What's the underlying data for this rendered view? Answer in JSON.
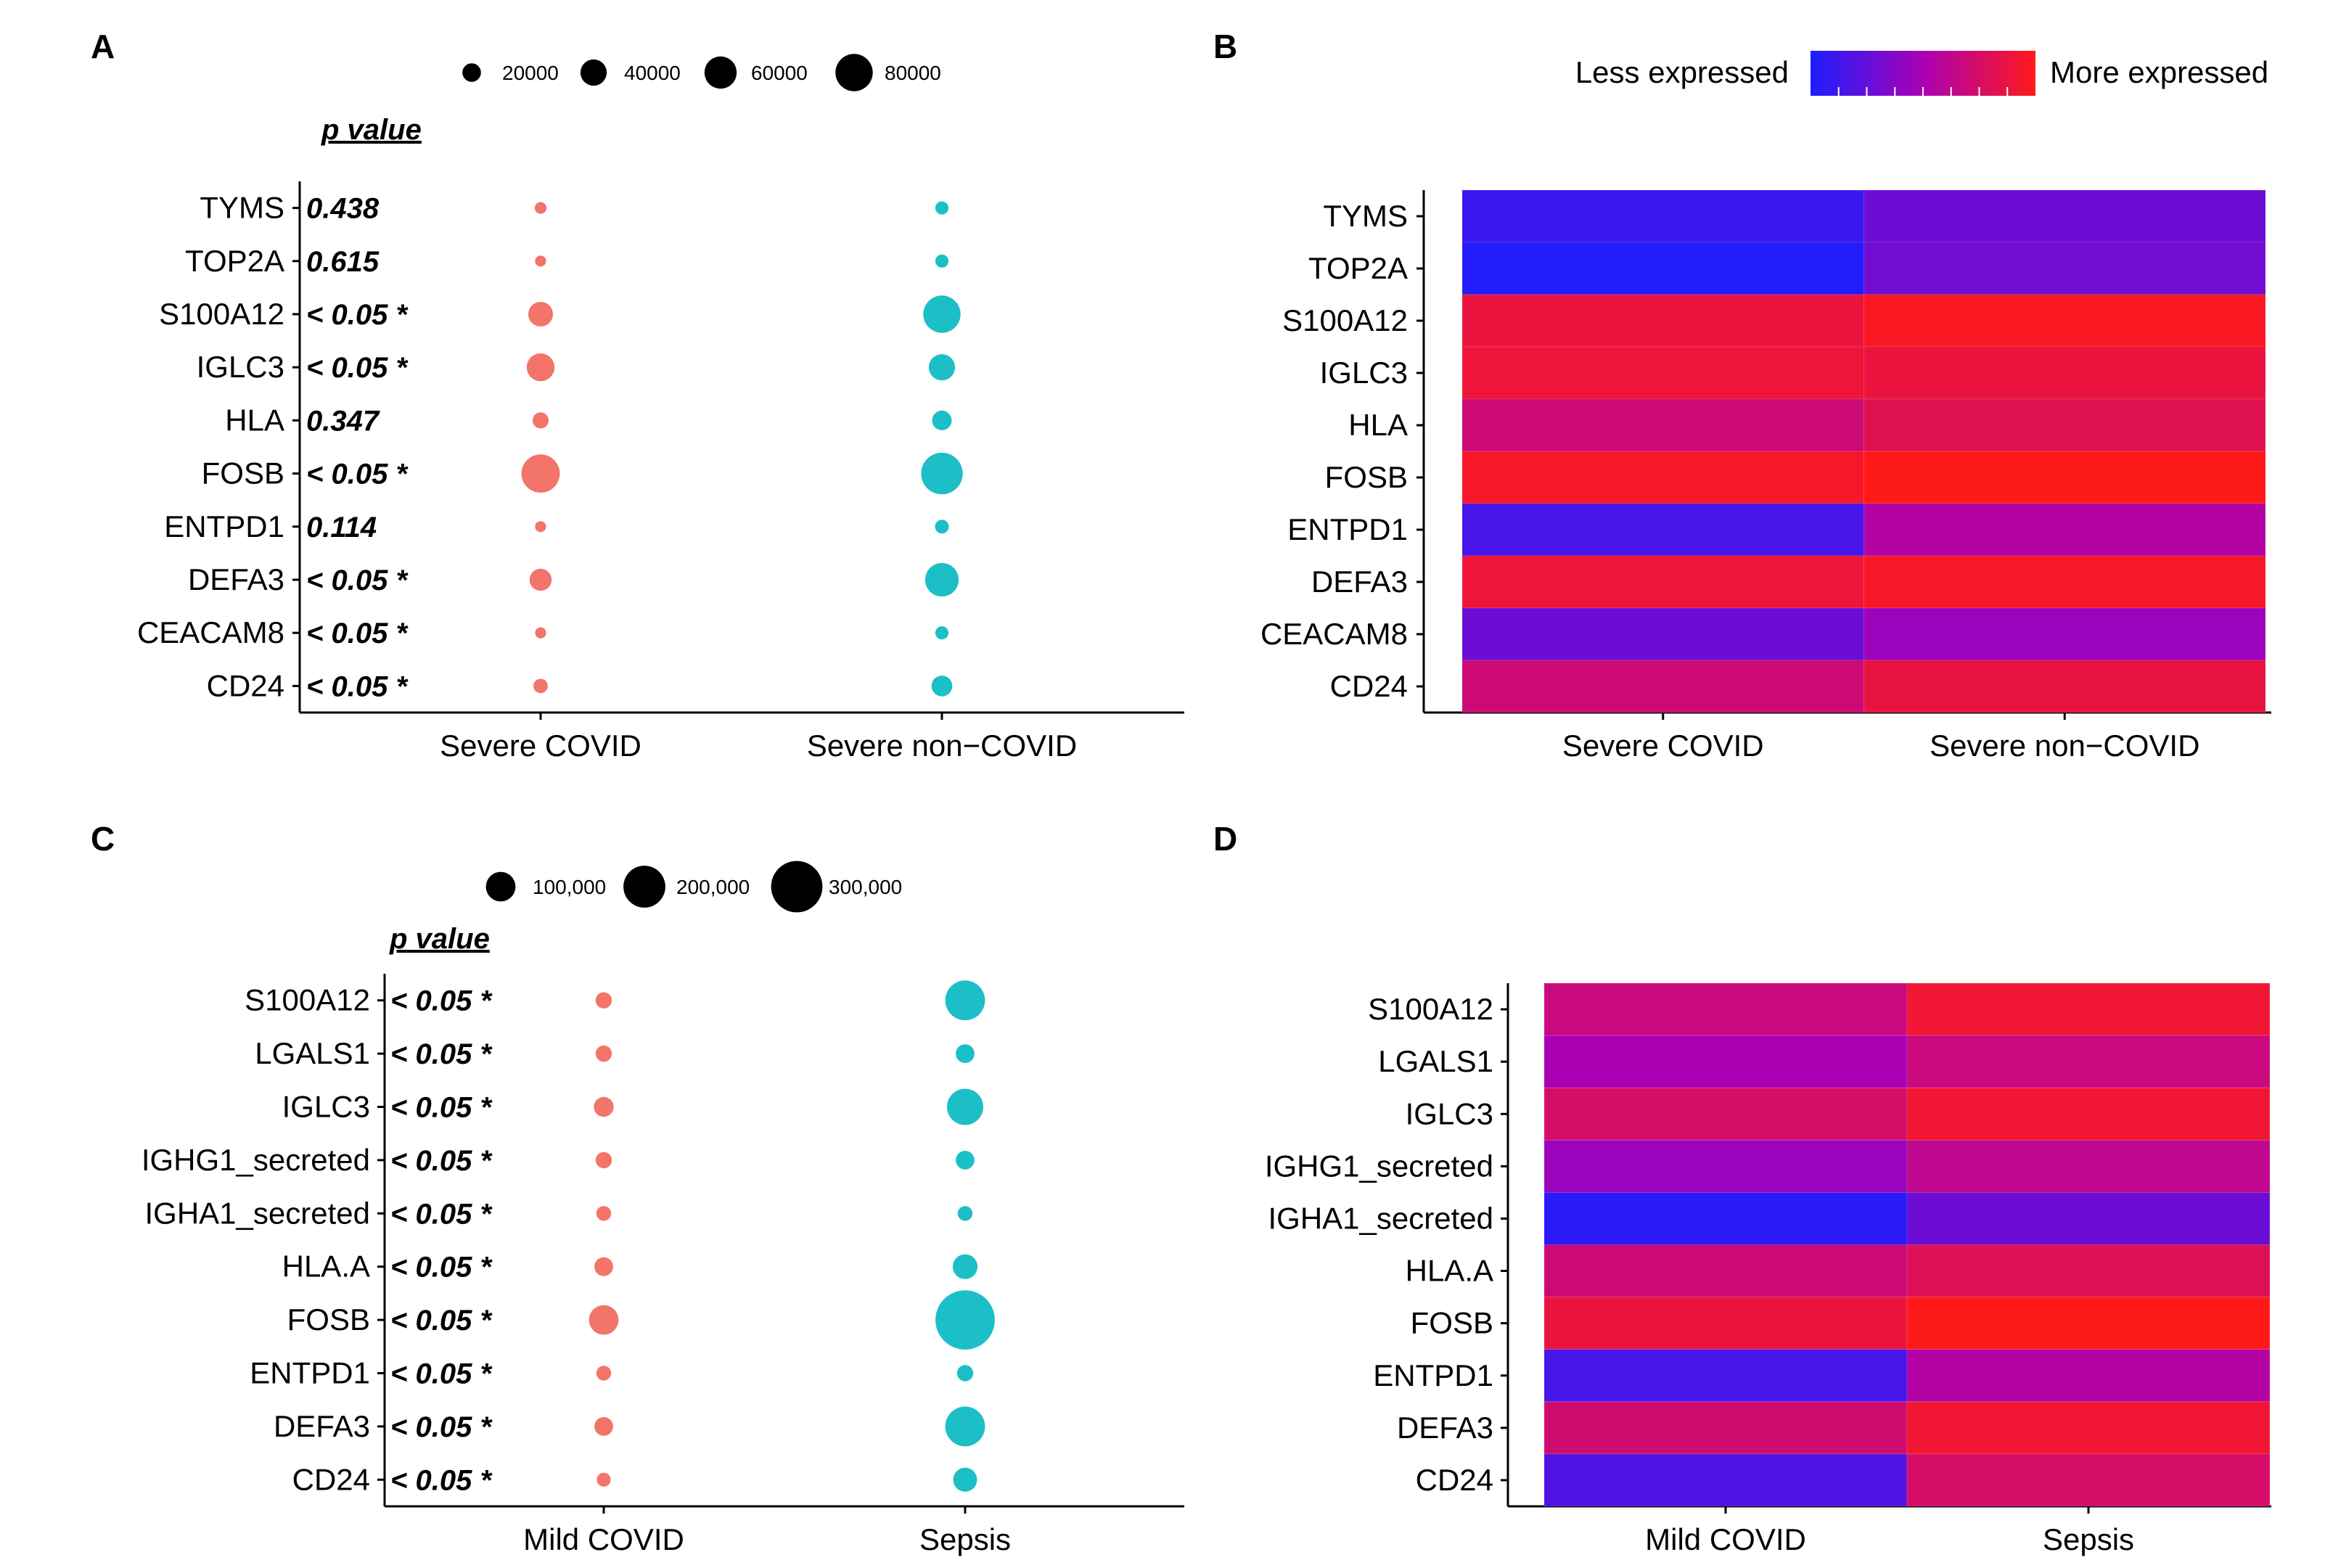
{
  "chart_data": [
    {
      "panel": "A",
      "type": "scatter",
      "subtype": "dot-size",
      "genes": [
        "TYMS",
        "TOP2A",
        "S100A12",
        "IGLC3",
        "HLA",
        "FOSB",
        "ENTPD1",
        "DEFA3",
        "CEACAM8",
        "CD24"
      ],
      "groups": [
        "Severe COVID",
        "Severe non−COVID"
      ],
      "group_colors": [
        "#f26d60",
        "#11bcc4"
      ],
      "sizes": [
        [
          8000,
          7000,
          35000,
          45000,
          15000,
          85000,
          7000,
          28000,
          7000,
          12000
        ],
        [
          10000,
          10000,
          80000,
          40000,
          22000,
          100000,
          11000,
          65000,
          10000,
          25000
        ]
      ],
      "p_header": "p value",
      "p_values": [
        "0.438",
        "0.615",
        "< 0.05 *",
        "< 0.05 *",
        "0.347",
        "< 0.05 *",
        "0.114",
        "< 0.05 *",
        "< 0.05 *",
        "< 0.05 *"
      ],
      "size_legend": {
        "values": [
          20000,
          40000,
          60000,
          80000
        ],
        "labels": [
          "20000",
          "40000",
          "60000",
          "80000"
        ]
      }
    },
    {
      "panel": "B",
      "type": "heatmap",
      "genes": [
        "TYMS",
        "TOP2A",
        "S100A12",
        "IGLC3",
        "HLA",
        "FOSB",
        "ENTPD1",
        "DEFA3",
        "CEACAM8",
        "CD24"
      ],
      "groups": [
        "Severe COVID",
        "Severe non−COVID"
      ],
      "values": [
        [
          0.1,
          0.28
        ],
        [
          0.02,
          0.3
        ],
        [
          0.88,
          0.97
        ],
        [
          0.9,
          0.88
        ],
        [
          0.7,
          0.82
        ],
        [
          0.95,
          1.0
        ],
        [
          0.15,
          0.55
        ],
        [
          0.9,
          0.95
        ],
        [
          0.28,
          0.45
        ],
        [
          0.7,
          0.87
        ]
      ],
      "legend": {
        "low_label": "Less expressed",
        "high_label": "More expressed",
        "low_color": "#1d1dff",
        "high_color": "#ff1a1a"
      }
    },
    {
      "panel": "C",
      "type": "scatter",
      "subtype": "dot-size",
      "genes": [
        "S100A12",
        "LGALS1",
        "IGLC3",
        "IGHG1_secreted",
        "IGHA1_secreted",
        "HLA.A",
        "FOSB",
        "ENTPD1",
        "DEFA3",
        "CD24"
      ],
      "groups": [
        "Mild COVID",
        "Sepsis"
      ],
      "group_colors": [
        "#f26d60",
        "#11bcc4"
      ],
      "sizes": [
        [
          30000,
          30000,
          45000,
          30000,
          25000,
          40000,
          100000,
          25000,
          40000,
          22000
        ],
        [
          180000,
          40000,
          150000,
          40000,
          25000,
          70000,
          400000,
          30000,
          180000,
          65000
        ]
      ],
      "p_header": "p value",
      "p_values": [
        "< 0.05 *",
        "< 0.05 *",
        "< 0.05 *",
        "< 0.05 *",
        "< 0.05 *",
        "< 0.05 *",
        "< 0.05 *",
        "< 0.05 *",
        "< 0.05 *",
        "< 0.05 *"
      ],
      "size_legend": {
        "values": [
          100000,
          200000,
          300000
        ],
        "labels": [
          "100,000",
          "200,000",
          "300,000"
        ]
      }
    },
    {
      "panel": "D",
      "type": "heatmap",
      "genes": [
        "S100A12",
        "LGALS1",
        "IGLC3",
        "IGHG1_secreted",
        "IGHA1_secreted",
        "HLA.A",
        "FOSB",
        "ENTPD1",
        "DEFA3",
        "CD24"
      ],
      "groups": [
        "Mild COVID",
        "Sepsis"
      ],
      "values": [
        [
          0.68,
          0.92
        ],
        [
          0.5,
          0.68
        ],
        [
          0.75,
          0.92
        ],
        [
          0.45,
          0.62
        ],
        [
          0.05,
          0.28
        ],
        [
          0.7,
          0.8
        ],
        [
          0.88,
          1.0
        ],
        [
          0.15,
          0.55
        ],
        [
          0.72,
          0.92
        ],
        [
          0.18,
          0.75
        ]
      ]
    }
  ]
}
